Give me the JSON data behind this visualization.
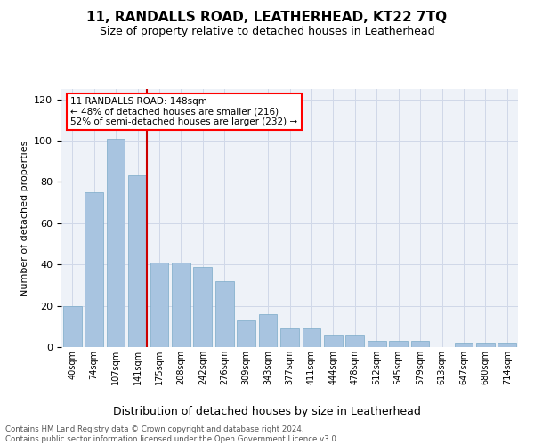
{
  "title": "11, RANDALLS ROAD, LEATHERHEAD, KT22 7TQ",
  "subtitle": "Size of property relative to detached houses in Leatherhead",
  "xlabel": "Distribution of detached houses by size in Leatherhead",
  "ylabel": "Number of detached properties",
  "categories": [
    "40sqm",
    "74sqm",
    "107sqm",
    "141sqm",
    "175sqm",
    "208sqm",
    "242sqm",
    "276sqm",
    "309sqm",
    "343sqm",
    "377sqm",
    "411sqm",
    "444sqm",
    "478sqm",
    "512sqm",
    "545sqm",
    "579sqm",
    "613sqm",
    "647sqm",
    "680sqm",
    "714sqm"
  ],
  "values": [
    20,
    75,
    101,
    83,
    41,
    41,
    39,
    32,
    13,
    16,
    9,
    9,
    6,
    6,
    3,
    3,
    3,
    0,
    2,
    2,
    2
  ],
  "bar_color": "#a8c4e0",
  "bar_edge_color": "#7aaac8",
  "highlight_bar_index": 3,
  "red_line_x": 3,
  "annotation_lines": [
    "11 RANDALLS ROAD: 148sqm",
    "← 48% of detached houses are smaller (216)",
    "52% of semi-detached houses are larger (232) →"
  ],
  "annotation_box_color": "white",
  "annotation_box_edge_color": "red",
  "red_line_color": "#cc0000",
  "grid_color": "#d0d8e8",
  "background_color": "#eef2f8",
  "ylim": [
    0,
    125
  ],
  "yticks": [
    0,
    20,
    40,
    60,
    80,
    100,
    120
  ],
  "footer_line1": "Contains HM Land Registry data © Crown copyright and database right 2024.",
  "footer_line2": "Contains public sector information licensed under the Open Government Licence v3.0."
}
